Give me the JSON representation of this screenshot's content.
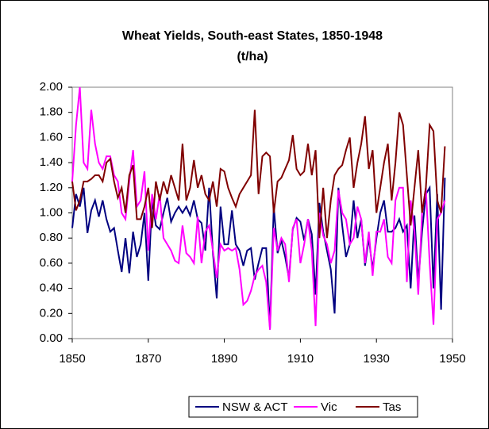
{
  "chart_data": {
    "type": "line",
    "title": "Wheat Yields, South-east States, 1850-1948",
    "subtitle": "(t/ha)",
    "x": [
      1850,
      1851,
      1852,
      1853,
      1854,
      1855,
      1856,
      1857,
      1858,
      1859,
      1860,
      1861,
      1862,
      1863,
      1864,
      1865,
      1866,
      1867,
      1868,
      1869,
      1870,
      1871,
      1872,
      1873,
      1874,
      1875,
      1876,
      1877,
      1878,
      1879,
      1880,
      1881,
      1882,
      1883,
      1884,
      1885,
      1886,
      1887,
      1888,
      1889,
      1890,
      1891,
      1892,
      1893,
      1894,
      1895,
      1896,
      1897,
      1898,
      1899,
      1900,
      1901,
      1902,
      1903,
      1904,
      1905,
      1906,
      1907,
      1908,
      1909,
      1910,
      1911,
      1912,
      1913,
      1914,
      1915,
      1916,
      1917,
      1918,
      1919,
      1920,
      1921,
      1922,
      1923,
      1924,
      1925,
      1926,
      1927,
      1928,
      1929,
      1930,
      1931,
      1932,
      1933,
      1934,
      1935,
      1936,
      1937,
      1938,
      1939,
      1940,
      1941,
      1942,
      1943,
      1944,
      1945,
      1946,
      1947,
      1948
    ],
    "series": [
      {
        "name": "NSW & ACT",
        "color": "#000080",
        "values": [
          0.88,
          1.15,
          1.05,
          1.2,
          0.84,
          1.02,
          1.1,
          0.97,
          1.1,
          0.95,
          0.85,
          0.88,
          0.7,
          0.53,
          0.8,
          0.52,
          0.85,
          0.65,
          0.75,
          1.0,
          0.46,
          1.1,
          0.9,
          0.87,
          1.0,
          1.12,
          0.93,
          1.0,
          1.05,
          1.0,
          1.05,
          0.98,
          1.1,
          0.95,
          0.92,
          0.7,
          1.2,
          0.68,
          0.32,
          1.05,
          0.75,
          0.75,
          1.02,
          0.75,
          0.7,
          0.58,
          0.7,
          0.72,
          0.47,
          0.6,
          0.72,
          0.72,
          0.08,
          1.05,
          0.68,
          0.78,
          0.65,
          0.48,
          0.87,
          0.96,
          0.93,
          0.78,
          0.95,
          0.83,
          0.35,
          1.08,
          0.85,
          0.7,
          0.55,
          0.2,
          1.2,
          0.9,
          0.65,
          0.75,
          1.1,
          0.8,
          0.95,
          0.58,
          0.8,
          0.55,
          0.8,
          1.0,
          1.1,
          0.85,
          0.85,
          0.88,
          0.95,
          0.85,
          0.9,
          0.4,
          0.98,
          0.45,
          0.85,
          1.15,
          1.2,
          0.4,
          1.15,
          0.23,
          1.28
        ]
      },
      {
        "name": "Vic",
        "color": "#ff00ff",
        "values": [
          1.25,
          1.7,
          2.0,
          1.4,
          1.35,
          1.82,
          1.55,
          1.4,
          1.35,
          1.45,
          1.45,
          1.3,
          1.25,
          1.0,
          0.95,
          1.25,
          1.5,
          1.05,
          1.1,
          1.33,
          0.7,
          1.15,
          0.95,
          1.15,
          0.8,
          0.75,
          0.7,
          0.62,
          0.6,
          0.9,
          0.68,
          0.65,
          0.6,
          0.97,
          0.6,
          0.85,
          0.9,
          0.7,
          0.48,
          0.75,
          0.7,
          0.72,
          0.7,
          0.72,
          0.55,
          0.27,
          0.3,
          0.38,
          0.5,
          0.55,
          0.58,
          0.45,
          0.07,
          0.88,
          0.7,
          0.8,
          0.75,
          0.45,
          0.88,
          0.95,
          0.6,
          0.75,
          0.95,
          0.7,
          0.1,
          1.0,
          0.82,
          0.75,
          0.6,
          0.7,
          1.18,
          1.0,
          0.95,
          0.75,
          0.8,
          1.05,
          0.95,
          0.6,
          0.85,
          0.5,
          0.85,
          0.85,
          0.95,
          0.65,
          0.6,
          1.1,
          1.2,
          1.2,
          0.45,
          1.1,
          0.85,
          0.35,
          1.0,
          1.2,
          0.6,
          0.11,
          0.95,
          1.0,
          1.1
        ]
      },
      {
        "name": "Tas",
        "color": "#800000",
        "values": [
          1.25,
          1.02,
          1.1,
          1.25,
          1.25,
          1.27,
          1.3,
          1.3,
          1.25,
          1.4,
          1.43,
          1.25,
          1.12,
          1.2,
          1.0,
          1.3,
          1.38,
          0.95,
          0.95,
          1.05,
          1.2,
          0.88,
          1.25,
          1.1,
          1.25,
          1.15,
          1.3,
          1.2,
          1.1,
          1.55,
          1.1,
          1.2,
          1.42,
          1.2,
          1.3,
          1.15,
          1.1,
          1.25,
          1.05,
          1.35,
          1.33,
          1.2,
          1.12,
          1.05,
          1.15,
          1.2,
          1.25,
          1.3,
          1.82,
          1.15,
          1.45,
          1.48,
          1.45,
          1.0,
          1.25,
          1.28,
          1.35,
          1.42,
          1.62,
          1.35,
          1.3,
          1.33,
          1.55,
          1.3,
          1.5,
          0.8,
          1.2,
          0.8,
          1.1,
          1.3,
          1.35,
          1.38,
          1.5,
          1.6,
          1.2,
          1.4,
          1.55,
          1.77,
          1.35,
          1.5,
          1.0,
          1.2,
          1.4,
          1.55,
          1.1,
          1.4,
          1.8,
          1.7,
          1.3,
          0.9,
          1.2,
          1.5,
          1.0,
          1.2,
          1.7,
          1.65,
          1.1,
          1.0,
          1.53
        ]
      }
    ],
    "xlim": [
      1850,
      1950
    ],
    "xticks": [
      1850,
      1870,
      1890,
      1910,
      1930,
      1950
    ],
    "ylim": [
      0,
      2
    ],
    "yticks": [
      {
        "value": 0,
        "label": "0.00"
      },
      {
        "value": 0.2,
        "label": "0.20"
      },
      {
        "value": 0.4,
        "label": "0.40"
      },
      {
        "value": 0.6,
        "label": "0.60"
      },
      {
        "value": 0.8,
        "label": "0.80"
      },
      {
        "value": 1,
        "label": "1.00"
      },
      {
        "value": 1.2,
        "label": "1.20"
      },
      {
        "value": 1.4,
        "label": "1.40"
      },
      {
        "value": 1.6,
        "label": "1.60"
      },
      {
        "value": 1.8,
        "label": "1.80"
      },
      {
        "value": 2,
        "label": "2.00"
      }
    ],
    "legend": "bottom"
  }
}
